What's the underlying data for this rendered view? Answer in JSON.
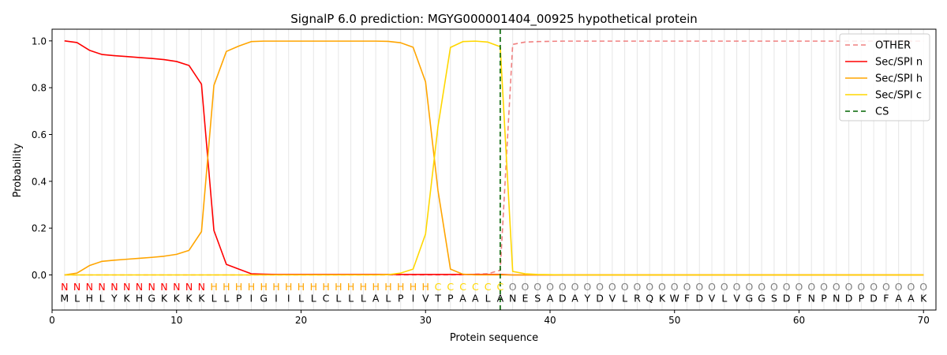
{
  "chart_data": {
    "type": "line",
    "title": "SignalP 6.0 prediction: MGYG000001404_00925 hypothetical protein",
    "xlabel": "Protein sequence",
    "ylabel": "Probability",
    "xlim": [
      0,
      71
    ],
    "ylim": [
      -0.15,
      1.05
    ],
    "x_ticks": [
      0,
      10,
      20,
      30,
      40,
      50,
      60,
      70
    ],
    "x_tick_labels": [
      "0",
      "10",
      "20",
      "30",
      "40",
      "50",
      "60",
      "70"
    ],
    "y_ticks": [
      0.0,
      0.2,
      0.4,
      0.6,
      0.8,
      1.0
    ],
    "y_tick_labels": [
      "0.0",
      "0.2",
      "0.4",
      "0.6",
      "0.8",
      "1.0"
    ],
    "legend_position": "top-right",
    "grid": "vertical lines at each residue",
    "sequence": [
      "M",
      "L",
      "H",
      "L",
      "Y",
      "K",
      "H",
      "G",
      "K",
      "K",
      "K",
      "K",
      "L",
      "L",
      "P",
      "I",
      "G",
      "I",
      "I",
      "L",
      "L",
      "C",
      "L",
      "L",
      "L",
      "A",
      "L",
      "P",
      "I",
      "V",
      "T",
      "P",
      "A",
      "A",
      "L",
      "A",
      "N",
      "E",
      "S",
      "A",
      "D",
      "A",
      "Y",
      "D",
      "V",
      "L",
      "R",
      "Q",
      "K",
      "W",
      "F",
      "D",
      "V",
      "L",
      "V",
      "G",
      "G",
      "S",
      "D",
      "F",
      "N",
      "P",
      "N",
      "D",
      "P",
      "D",
      "F",
      "A",
      "A",
      "K"
    ],
    "region_labels": [
      "N",
      "N",
      "N",
      "N",
      "N",
      "N",
      "N",
      "N",
      "N",
      "N",
      "N",
      "N",
      "H",
      "H",
      "H",
      "H",
      "H",
      "H",
      "H",
      "H",
      "H",
      "H",
      "H",
      "H",
      "H",
      "H",
      "H",
      "H",
      "H",
      "H",
      "C",
      "C",
      "C",
      "C",
      "C",
      "C",
      "O",
      "O",
      "O",
      "O",
      "O",
      "O",
      "O",
      "O",
      "O",
      "O",
      "O",
      "O",
      "O",
      "O",
      "O",
      "O",
      "O",
      "O",
      "O",
      "O",
      "O",
      "O",
      "O",
      "O",
      "O",
      "O",
      "O",
      "O",
      "O",
      "O",
      "O",
      "O",
      "O",
      "O"
    ],
    "region_colors": {
      "N": "#ff0000",
      "H": "#ffa500",
      "C": "#ffd700",
      "O": "#808080"
    },
    "x": [
      1,
      2,
      3,
      4,
      5,
      6,
      7,
      8,
      9,
      10,
      11,
      12,
      13,
      14,
      15,
      16,
      17,
      18,
      19,
      20,
      21,
      22,
      23,
      24,
      25,
      26,
      27,
      28,
      29,
      30,
      31,
      32,
      33,
      34,
      35,
      36,
      37,
      38,
      39,
      40,
      41,
      42,
      43,
      44,
      45,
      46,
      47,
      48,
      49,
      50,
      51,
      52,
      53,
      54,
      55,
      56,
      57,
      58,
      59,
      60,
      61,
      62,
      63,
      64,
      65,
      66,
      67,
      68,
      69,
      70
    ],
    "series": [
      {
        "name": "OTHER",
        "color": "#f08080",
        "dash": "dashed",
        "values": [
          0,
          0,
          0,
          0,
          0,
          0,
          0,
          0,
          0,
          0,
          0,
          0,
          0,
          0,
          0,
          0,
          0,
          0,
          0,
          0,
          0,
          0,
          0,
          0,
          0,
          0,
          0,
          0,
          0,
          0,
          0,
          0,
          0.001,
          0.003,
          0.005,
          0.02,
          0.985,
          0.995,
          0.997,
          0.998,
          0.999,
          0.999,
          0.999,
          0.999,
          0.999,
          0.999,
          0.999,
          0.999,
          0.999,
          0.999,
          0.999,
          0.999,
          0.999,
          0.999,
          0.999,
          0.999,
          0.999,
          0.999,
          0.999,
          0.999,
          0.999,
          0.999,
          0.999,
          0.999,
          0.999,
          0.999,
          0.999,
          0.999,
          0.999,
          0.999
        ]
      },
      {
        "name": "Sec/SPI n",
        "color": "#ff0000",
        "dash": "solid",
        "values": [
          1.0,
          0.993,
          0.96,
          0.942,
          0.937,
          0.933,
          0.929,
          0.925,
          0.92,
          0.912,
          0.895,
          0.815,
          0.19,
          0.045,
          0.025,
          0.005,
          0.003,
          0.002,
          0.002,
          0.002,
          0.002,
          0.002,
          0.002,
          0.002,
          0.002,
          0.002,
          0.002,
          0.002,
          0.002,
          0.002,
          0.002,
          0.002,
          0.002,
          0.002,
          0.002,
          0.002,
          0,
          0,
          0,
          0,
          0,
          0,
          0,
          0,
          0,
          0,
          0,
          0,
          0,
          0,
          0,
          0,
          0,
          0,
          0,
          0,
          0,
          0,
          0,
          0,
          0,
          0,
          0,
          0,
          0,
          0,
          0,
          0,
          0,
          0
        ]
      },
      {
        "name": "Sec/SPI h",
        "color": "#ffa500",
        "dash": "solid",
        "values": [
          0,
          0.008,
          0.04,
          0.058,
          0.063,
          0.067,
          0.071,
          0.075,
          0.08,
          0.088,
          0.105,
          0.185,
          0.81,
          0.955,
          0.978,
          0.997,
          0.999,
          0.999,
          0.999,
          0.999,
          0.999,
          0.999,
          0.999,
          0.999,
          0.999,
          0.999,
          0.998,
          0.992,
          0.973,
          0.825,
          0.36,
          0.025,
          0.003,
          0,
          0,
          0,
          0,
          0,
          0,
          0,
          0,
          0,
          0,
          0,
          0,
          0,
          0,
          0,
          0,
          0,
          0,
          0,
          0,
          0,
          0,
          0,
          0,
          0,
          0,
          0,
          0,
          0,
          0,
          0,
          0,
          0,
          0,
          0,
          0,
          0
        ]
      },
      {
        "name": "Sec/SPI c",
        "color": "#ffd700",
        "dash": "solid",
        "values": [
          0,
          0,
          0,
          0,
          0,
          0,
          0,
          0,
          0,
          0,
          0,
          0,
          0,
          0,
          0,
          0,
          0,
          0,
          0,
          0,
          0,
          0,
          0,
          0,
          0,
          0,
          0.001,
          0.008,
          0.025,
          0.175,
          0.635,
          0.972,
          0.997,
          0.999,
          0.995,
          0.975,
          0.015,
          0.005,
          0.002,
          0.001,
          0,
          0,
          0,
          0,
          0,
          0,
          0,
          0,
          0,
          0,
          0,
          0,
          0,
          0,
          0,
          0,
          0,
          0,
          0,
          0,
          0,
          0,
          0,
          0,
          0,
          0,
          0,
          0,
          0,
          0
        ]
      }
    ],
    "cleavage_site": {
      "name": "CS",
      "x": 36,
      "color": "#006400",
      "dash": "dashed"
    }
  }
}
